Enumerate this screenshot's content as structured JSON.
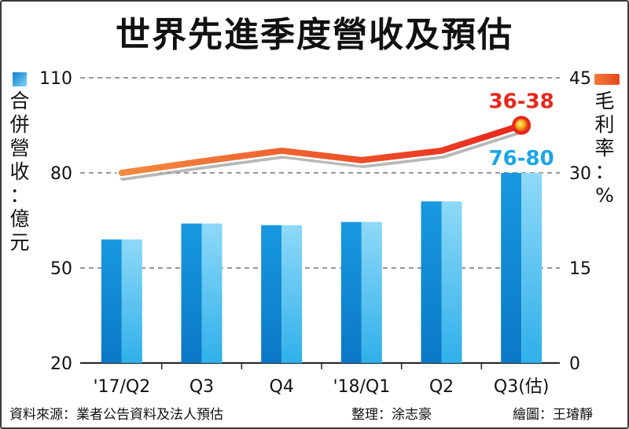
{
  "title": "世界先進季度營收及預估",
  "left_axis": {
    "label_chars": [
      "合",
      "併",
      "營",
      "收",
      "：",
      "億",
      "元"
    ],
    "color": "#1aa6e6"
  },
  "right_axis": {
    "label_chars": [
      "毛",
      "利",
      "率",
      "：",
      "%"
    ],
    "color": "#e8471b"
  },
  "footer": {
    "source": "資料來源：業者公告資料及法人預估",
    "editor": "整理：涂志豪",
    "drawer": "繪圖：王璿靜"
  },
  "chart_data": {
    "type": "bar",
    "categories": [
      "'17/Q2",
      "Q3",
      "Q4",
      "'18/Q1",
      "Q2",
      "Q3(估)"
    ],
    "series": [
      {
        "type": "bar",
        "axis": "left",
        "values": [
          59,
          64,
          63.5,
          64.5,
          71,
          80
        ],
        "color": "#1aa6e6"
      },
      {
        "type": "line",
        "axis": "right",
        "values": [
          30,
          31.8,
          33.5,
          32,
          33.5,
          37.5
        ],
        "color": "#e8471b"
      }
    ],
    "ylim_left": [
      20,
      110
    ],
    "yticks_left": [
      20,
      50,
      80,
      110
    ],
    "ylim_right": [
      0,
      45
    ],
    "yticks_right": [
      0,
      15,
      30,
      45
    ],
    "annotations": [
      {
        "text": "36-38",
        "category_index": 5,
        "series": "line",
        "color": "#e8271b"
      },
      {
        "text": "76-80",
        "category_index": 5,
        "series": "bar",
        "color": "#1aa6e6"
      }
    ],
    "grid": "dashed-horizontal"
  }
}
